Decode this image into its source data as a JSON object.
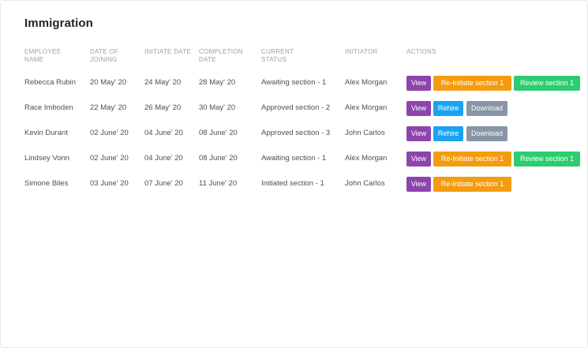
{
  "page": {
    "title": "Immigration"
  },
  "table": {
    "headers": {
      "employee_name": "EMPLOYEE NAME",
      "date_of_joining": "DATE OF JOINING",
      "initiate_date": "INITIATE DATE",
      "completion_date": "COMPLETION DATE",
      "current_status": "CURRENT STATUS",
      "initiator": "INITIATOR",
      "actions": "ACTIONS"
    },
    "rows": [
      {
        "name": "Rebecca Rubin",
        "joining": "20 May' 20",
        "initiate": "24 May' 20",
        "completion": "28 May' 20",
        "status": "Awaiting section - 1",
        "initiator": "Alex Morgan",
        "actions": [
          "View",
          "Re-Initiate section 1",
          "Review section 1"
        ]
      },
      {
        "name": "Race Imboden",
        "joining": "22 May' 20",
        "initiate": "26 May' 20",
        "completion": "30 May' 20",
        "status": "Approved section - 2",
        "initiator": "Alex Morgan",
        "actions": [
          "View",
          "Rehire",
          "Download"
        ]
      },
      {
        "name": "Kevin Durant",
        "joining": "02 June' 20",
        "initiate": "04 June' 20",
        "completion": "08 June' 20",
        "status": "Approved section - 3",
        "initiator": "John Carlos",
        "actions": [
          "View",
          "Rehire",
          "Download"
        ]
      },
      {
        "name": "Lindsey Vonn",
        "joining": "02 June' 20",
        "initiate": "04 June' 20",
        "completion": "08 June' 20",
        "status": "Awaiting section - 1",
        "initiator": "Alex Morgan",
        "actions": [
          "View",
          "Re-Initiate section 1",
          "Review section 1"
        ]
      },
      {
        "name": "Simone Biles",
        "joining": "03 June' 20",
        "initiate": "07 June' 20",
        "completion": "11 June' 20",
        "status": "Initiated section - 1",
        "initiator": "John Carlos",
        "actions": [
          "View",
          "Re-Initiate section 1"
        ]
      }
    ]
  },
  "colors": {
    "view": "#8e44ad",
    "reinitiate": "#f39c12",
    "review": "#2ecc71",
    "rehire": "#1aa3f0",
    "download": "#8795a7"
  }
}
